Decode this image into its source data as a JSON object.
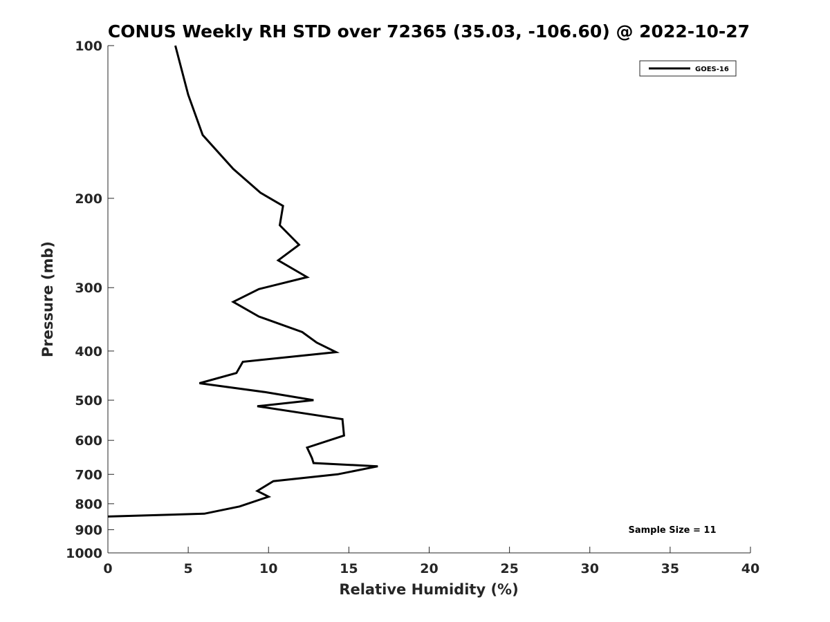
{
  "chart_data": {
    "type": "line",
    "title": "CONUS Weekly RH STD over 72365 (35.03, -106.60) @ 2022-10-27",
    "xlabel": "Relative Humidity (%)",
    "ylabel": "Pressure (mb)",
    "xlim": [
      0,
      40
    ],
    "ylim": [
      100,
      1000
    ],
    "y_scale": "log",
    "y_reversed": true,
    "x_ticks": [
      "0",
      "5",
      "10",
      "15",
      "20",
      "25",
      "30",
      "35",
      "40"
    ],
    "y_ticks": [
      "100",
      "200",
      "300",
      "400",
      "500",
      "600",
      "700",
      "800",
      "900",
      "1000"
    ],
    "grid": false,
    "legend_position": "top-right",
    "annotation": "Sample Size = 11",
    "series": [
      {
        "name": "GOES-16",
        "color": "#000000",
        "x": [
          4.2,
          5.0,
          5.9,
          7.8,
          9.5,
          10.9,
          10.7,
          11.9,
          10.6,
          12.4,
          9.4,
          7.8,
          9.4,
          12.1,
          13.0,
          14.2,
          8.4,
          8.0,
          5.7,
          9.8,
          12.8,
          9.3,
          14.6,
          14.7,
          12.4,
          12.7,
          12.8,
          16.8,
          14.3,
          10.3,
          9.3,
          10.0,
          8.2,
          6.0,
          0.0
        ],
        "y": [
          100,
          125,
          150,
          175,
          195,
          207,
          226,
          247,
          265,
          286,
          302,
          320,
          342,
          367,
          385,
          402,
          420,
          442,
          463,
          482,
          500,
          514,
          545,
          587,
          620,
          650,
          665,
          675,
          700,
          722,
          755,
          775,
          810,
          837,
          848
        ]
      }
    ]
  }
}
